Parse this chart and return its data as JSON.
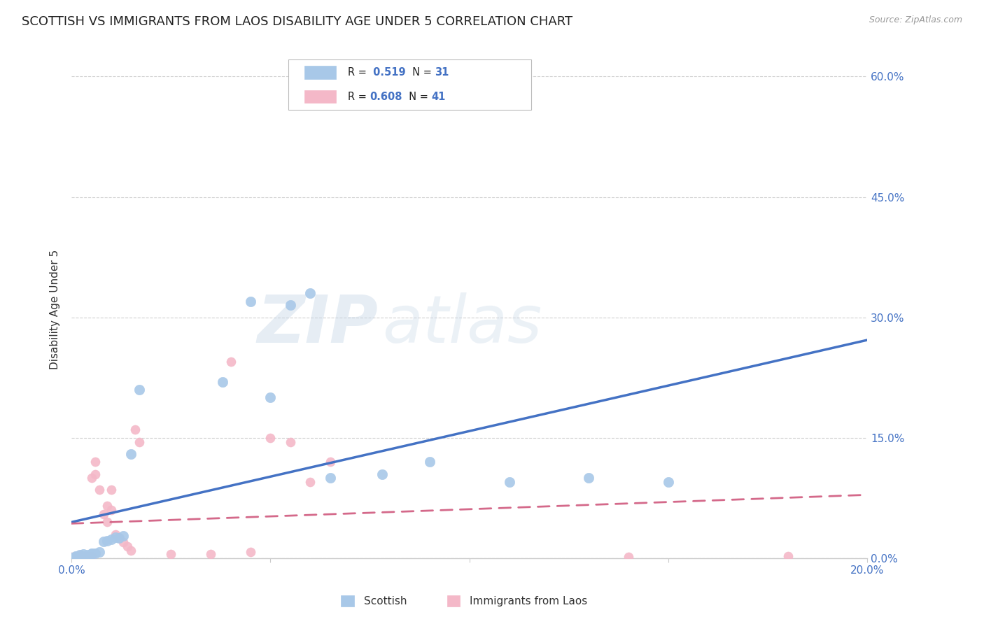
{
  "title": "SCOTTISH VS IMMIGRANTS FROM LAOS DISABILITY AGE UNDER 5 CORRELATION CHART",
  "source": "Source: ZipAtlas.com",
  "ylabel": "Disability Age Under 5",
  "right_ytick_labels": [
    "0.0%",
    "15.0%",
    "30.0%",
    "45.0%",
    "60.0%"
  ],
  "right_ytick_values": [
    0.0,
    0.15,
    0.3,
    0.45,
    0.6
  ],
  "scottish_color": "#a8c8e8",
  "laos_color": "#f4b8c8",
  "scottish_line_color": "#4472c4",
  "laos_line_color": "#d4698a",
  "scottish_x": [
    0.0,
    0.001,
    0.001,
    0.002,
    0.002,
    0.003,
    0.003,
    0.004,
    0.005,
    0.005,
    0.006,
    0.007,
    0.008,
    0.009,
    0.01,
    0.011,
    0.012,
    0.013,
    0.015,
    0.017,
    0.038,
    0.045,
    0.05,
    0.055,
    0.06,
    0.065,
    0.078,
    0.09,
    0.11,
    0.13,
    0.15
  ],
  "scottish_y": [
    0.001,
    0.002,
    0.003,
    0.002,
    0.004,
    0.003,
    0.005,
    0.004,
    0.005,
    0.006,
    0.006,
    0.008,
    0.021,
    0.022,
    0.024,
    0.026,
    0.025,
    0.028,
    0.13,
    0.21,
    0.22,
    0.32,
    0.2,
    0.315,
    0.33,
    0.1,
    0.105,
    0.12,
    0.095,
    0.1,
    0.095
  ],
  "laos_x": [
    0.0,
    0.0,
    0.001,
    0.001,
    0.001,
    0.002,
    0.002,
    0.002,
    0.003,
    0.003,
    0.003,
    0.004,
    0.004,
    0.005,
    0.005,
    0.005,
    0.006,
    0.006,
    0.007,
    0.008,
    0.009,
    0.009,
    0.01,
    0.01,
    0.011,
    0.012,
    0.013,
    0.014,
    0.015,
    0.016,
    0.017,
    0.025,
    0.035,
    0.04,
    0.045,
    0.05,
    0.055,
    0.06,
    0.065,
    0.14,
    0.18
  ],
  "laos_y": [
    0.001,
    0.002,
    0.001,
    0.002,
    0.003,
    0.001,
    0.002,
    0.004,
    0.001,
    0.002,
    0.003,
    0.002,
    0.003,
    0.002,
    0.003,
    0.1,
    0.105,
    0.12,
    0.085,
    0.055,
    0.065,
    0.045,
    0.06,
    0.085,
    0.03,
    0.025,
    0.02,
    0.015,
    0.01,
    0.16,
    0.145,
    0.005,
    0.005,
    0.245,
    0.008,
    0.15,
    0.145,
    0.095,
    0.12,
    0.002,
    0.003
  ],
  "xlim": [
    0.0,
    0.2
  ],
  "ylim": [
    0.0,
    0.62
  ],
  "watermark_zip": "ZIP",
  "watermark_atlas": "atlas",
  "title_color": "#222222",
  "axis_color": "#4472c4",
  "title_fontsize": 13,
  "label_fontsize": 11,
  "tick_fontsize": 11,
  "legend_items": [
    {
      "label_r": "R = ",
      "r_val": " 0.519",
      "label_n": "  N = ",
      "n_val": "31"
    },
    {
      "label_r": "R = ",
      "r_val": "0.608",
      "label_n": "  N = ",
      "n_val": "41"
    }
  ]
}
